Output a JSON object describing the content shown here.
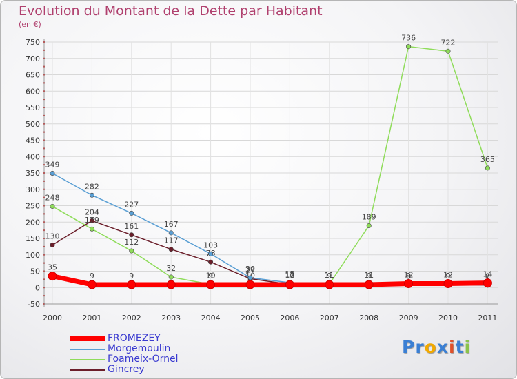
{
  "chart_data": {
    "type": "line",
    "title": "Evolution du Montant de la Dette par Habitant",
    "subtitle": "(en €)",
    "xlabel": "",
    "ylabel": "",
    "ylim": [
      -50,
      750
    ],
    "yticks": [
      -50,
      0,
      50,
      100,
      150,
      200,
      250,
      300,
      350,
      400,
      450,
      500,
      550,
      600,
      650,
      700,
      750
    ],
    "ytick_labels": [
      "-50",
      "0",
      "50",
      "100",
      "150",
      "200",
      "250",
      "300",
      "350",
      "400",
      "450",
      "500",
      "550",
      "600",
      "650",
      "700",
      "750"
    ],
    "categories": [
      "2000",
      "2001",
      "2002",
      "2003",
      "2004",
      "2005",
      "2006",
      "2007",
      "2008",
      "2009",
      "2010",
      "2011"
    ],
    "grid": true,
    "series": [
      {
        "name": "Gincrey",
        "color": "#6b1e2a",
        "values": [
          130,
          204,
          161,
          117,
          78,
          27,
          10,
          9,
          9,
          9,
          9,
          7
        ],
        "labels": [
          "130",
          "204",
          "161",
          "117",
          "78",
          "27",
          "10",
          "9",
          "9",
          "9",
          "9",
          "7"
        ]
      },
      {
        "name": "Foameix-Ornel",
        "color": "#8fdc5a",
        "values": [
          248,
          179,
          112,
          32,
          10,
          10,
          12,
          11,
          189,
          736,
          722,
          365
        ],
        "labels": [
          "248",
          "179",
          "112",
          "32",
          "10",
          "10",
          "12",
          "11",
          "189",
          "736",
          "722",
          "365"
        ]
      },
      {
        "name": "Morgemoulin",
        "color": "#5a9fd4",
        "values": [
          349,
          282,
          227,
          167,
          103,
          30,
          15,
          11,
          11,
          8,
          9,
          8
        ],
        "labels": [
          "349",
          "282",
          "227",
          "167",
          "103",
          "30",
          "15",
          "11",
          "11",
          "8",
          "9",
          "8"
        ]
      },
      {
        "name": "FROMEZEY",
        "color": "#ff0000",
        "values": [
          35,
          9,
          9,
          9,
          9,
          9,
          9,
          9,
          9,
          12,
          12,
          14
        ],
        "labels": [
          "35",
          "9",
          "9",
          "",
          "9",
          "",
          "",
          "",
          "",
          "12",
          "12",
          "14"
        ]
      }
    ]
  },
  "legend": {
    "items": [
      {
        "name": "FROMEZEY",
        "color": "#ff0000"
      },
      {
        "name": "Morgemoulin",
        "color": "#5a9fd4"
      },
      {
        "name": "Foameix-Ornel",
        "color": "#8fdc5a"
      },
      {
        "name": "Gincrey",
        "color": "#6b1e2a"
      }
    ]
  },
  "logo": {
    "letters": [
      "P",
      "r",
      "o",
      "x",
      "i",
      "t",
      "i"
    ],
    "colors": [
      "#3a7fd4",
      "#3a7fd4",
      "#f2a900",
      "#3a7fd4",
      "#e0502a",
      "#3a7fd4",
      "#8bc34a"
    ]
  }
}
